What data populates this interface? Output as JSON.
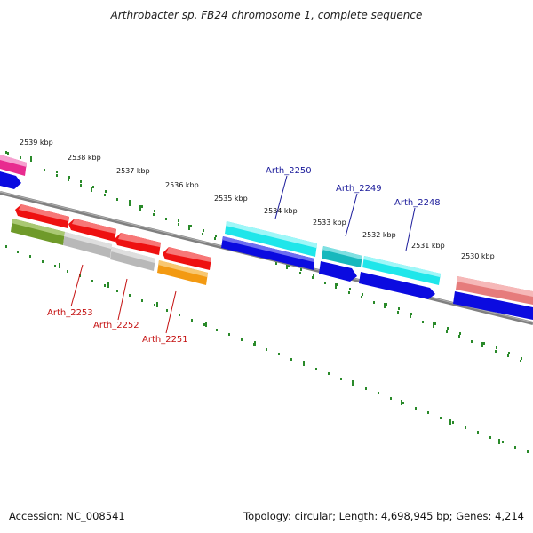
{
  "title": "Arthrobacter sp. FB24 chromosome 1, complete sequence",
  "footer": {
    "accession": "Accession: NC_008541",
    "topology": "Topology: circular; Length: 4,698,945 bp; Genes: 4,214"
  },
  "ticks": [
    "2539 kbp",
    "2538 kbp",
    "2537 kbp",
    "2536 kbp",
    "2535 kbp",
    "2534 kbp",
    "2533 kbp",
    "2532 kbp",
    "2531 kbp",
    "2530 kbp"
  ],
  "gene_labels": {
    "arth_2250": "Arth_2250",
    "arth_2249": "Arth_2249",
    "arth_2248": "Arth_2248",
    "arth_2253": "Arth_2253",
    "arth_2252": "Arth_2252",
    "arth_2251": "Arth_2251"
  },
  "colors": {
    "backbone": "#8a8a8a",
    "dots": "#2a8a2a",
    "label_plus": "#1a1a9a",
    "label_minus": "#c41010",
    "cds_blue": "#0b0be0",
    "cds_red": "#ee1111",
    "cds_cyan": "#1fe6ea",
    "cds_olive": "#6f9a2a",
    "cds_gray": "#b8b8b8",
    "cds_orange": "#f39a12",
    "cds_pink": "#e82b8f",
    "cds_salmon": "#e67c7c"
  }
}
